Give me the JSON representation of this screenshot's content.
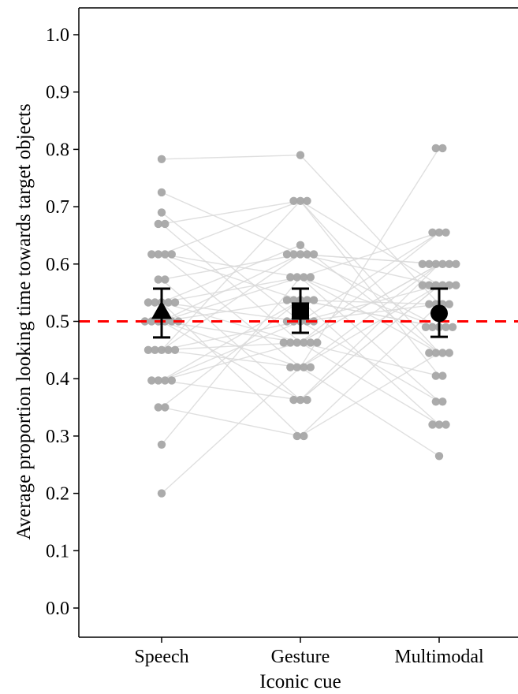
{
  "chart_data": {
    "type": "scatter",
    "xlabel": "Iconic cue",
    "ylabel": "Average proportion looking time towards target objects",
    "categories": [
      "Speech",
      "Gesture",
      "Multimodal"
    ],
    "ylim": [
      0.0,
      1.0
    ],
    "yticks": [
      "0.0",
      "0.1",
      "0.2",
      "0.3",
      "0.4",
      "0.5",
      "0.6",
      "0.7",
      "0.8",
      "0.9",
      "1.0"
    ],
    "grid": false,
    "reference_line": {
      "y": 0.5,
      "style": "dashed",
      "color": "#ff0000"
    },
    "means": [
      {
        "category": "Speech",
        "mean": 0.518,
        "ci_low": 0.472,
        "ci_high": 0.557,
        "marker": "triangle"
      },
      {
        "category": "Gesture",
        "mean": 0.518,
        "ci_low": 0.48,
        "ci_high": 0.557,
        "marker": "square"
      },
      {
        "category": "Multimodal",
        "mean": 0.514,
        "ci_low": 0.473,
        "ci_high": 0.557,
        "marker": "circle"
      }
    ],
    "participants": {
      "Speech": [
        0.783,
        0.725,
        0.69,
        0.67,
        0.67,
        0.617,
        0.617,
        0.617,
        0.617,
        0.573,
        0.573,
        0.533,
        0.533,
        0.533,
        0.533,
        0.533,
        0.5,
        0.5,
        0.5,
        0.5,
        0.5,
        0.5,
        0.45,
        0.45,
        0.45,
        0.45,
        0.45,
        0.397,
        0.397,
        0.397,
        0.397,
        0.35,
        0.35,
        0.285,
        0.2
      ],
      "Gesture": [
        0.79,
        0.71,
        0.71,
        0.71,
        0.633,
        0.617,
        0.617,
        0.617,
        0.617,
        0.617,
        0.577,
        0.577,
        0.577,
        0.577,
        0.537,
        0.537,
        0.537,
        0.537,
        0.537,
        0.5,
        0.5,
        0.5,
        0.5,
        0.5,
        0.463,
        0.463,
        0.463,
        0.463,
        0.463,
        0.463,
        0.42,
        0.42,
        0.42,
        0.42,
        0.363,
        0.363,
        0.363,
        0.3,
        0.3
      ],
      "Multimodal": [
        0.802,
        0.802,
        0.655,
        0.655,
        0.655,
        0.6,
        0.6,
        0.6,
        0.6,
        0.6,
        0.6,
        0.563,
        0.563,
        0.563,
        0.563,
        0.563,
        0.563,
        0.53,
        0.53,
        0.53,
        0.53,
        0.49,
        0.49,
        0.49,
        0.49,
        0.49,
        0.445,
        0.445,
        0.445,
        0.445,
        0.405,
        0.405,
        0.36,
        0.36,
        0.32,
        0.32,
        0.32,
        0.265
      ]
    },
    "paired_lines": [
      [
        0.783,
        0.79,
        0.53
      ],
      [
        0.725,
        0.617,
        0.6
      ],
      [
        0.69,
        0.5,
        0.563
      ],
      [
        0.67,
        0.71,
        0.445
      ],
      [
        0.67,
        0.463,
        0.655
      ],
      [
        0.617,
        0.577,
        0.49
      ],
      [
        0.617,
        0.42,
        0.6
      ],
      [
        0.617,
        0.71,
        0.405
      ],
      [
        0.617,
        0.537,
        0.32
      ],
      [
        0.573,
        0.363,
        0.563
      ],
      [
        0.573,
        0.617,
        0.49
      ],
      [
        0.533,
        0.463,
        0.6
      ],
      [
        0.533,
        0.577,
        0.36
      ],
      [
        0.533,
        0.3,
        0.53
      ],
      [
        0.533,
        0.633,
        0.445
      ],
      [
        0.533,
        0.5,
        0.655
      ],
      [
        0.5,
        0.42,
        0.802
      ],
      [
        0.5,
        0.617,
        0.563
      ],
      [
        0.5,
        0.463,
        0.32
      ],
      [
        0.5,
        0.537,
        0.49
      ],
      [
        0.5,
        0.363,
        0.6
      ],
      [
        0.5,
        0.577,
        0.445
      ],
      [
        0.45,
        0.5,
        0.53
      ],
      [
        0.45,
        0.71,
        0.563
      ],
      [
        0.45,
        0.463,
        0.405
      ],
      [
        0.45,
        0.617,
        0.6
      ],
      [
        0.45,
        0.42,
        0.265
      ],
      [
        0.397,
        0.537,
        0.49
      ],
      [
        0.397,
        0.363,
        0.563
      ],
      [
        0.397,
        0.5,
        0.36
      ],
      [
        0.397,
        0.463,
        0.6
      ],
      [
        0.35,
        0.537,
        0.53
      ],
      [
        0.35,
        0.3,
        0.445
      ],
      [
        0.285,
        0.577,
        0.655
      ],
      [
        0.2,
        0.42,
        0.563
      ]
    ]
  }
}
